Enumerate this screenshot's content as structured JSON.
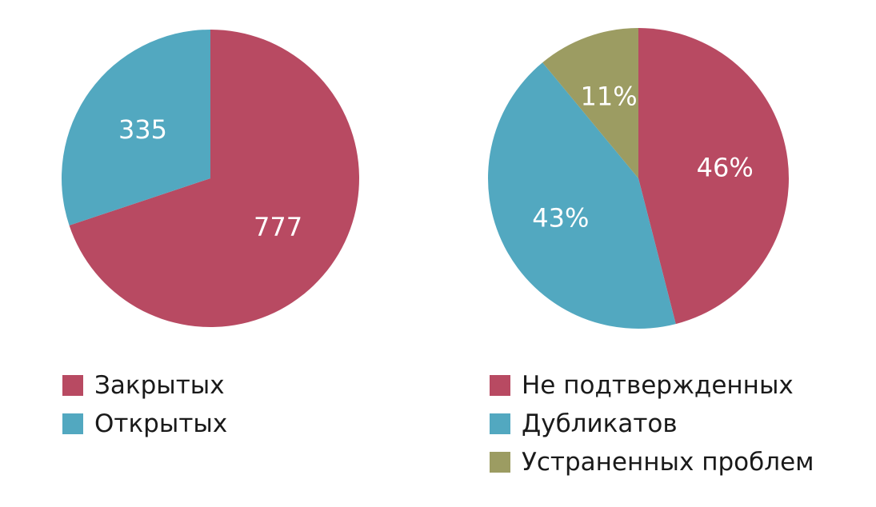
{
  "chart_data": [
    {
      "type": "pie",
      "categories": [
        "Закрытых",
        "Открытых"
      ],
      "values": [
        777,
        335
      ],
      "labels": [
        "777",
        "335"
      ],
      "colors": [
        "#b84a62",
        "#52a8c0"
      ],
      "legend_position": "bottom"
    },
    {
      "type": "pie",
      "categories": [
        "Не подтвержденных",
        "Дубликатов",
        "Устраненных проблем"
      ],
      "values": [
        46,
        43,
        11
      ],
      "labels": [
        "46%",
        "43%",
        "11%"
      ],
      "colors": [
        "#b84a62",
        "#52a8c0",
        "#9c9c62"
      ],
      "legend_position": "bottom"
    }
  ]
}
